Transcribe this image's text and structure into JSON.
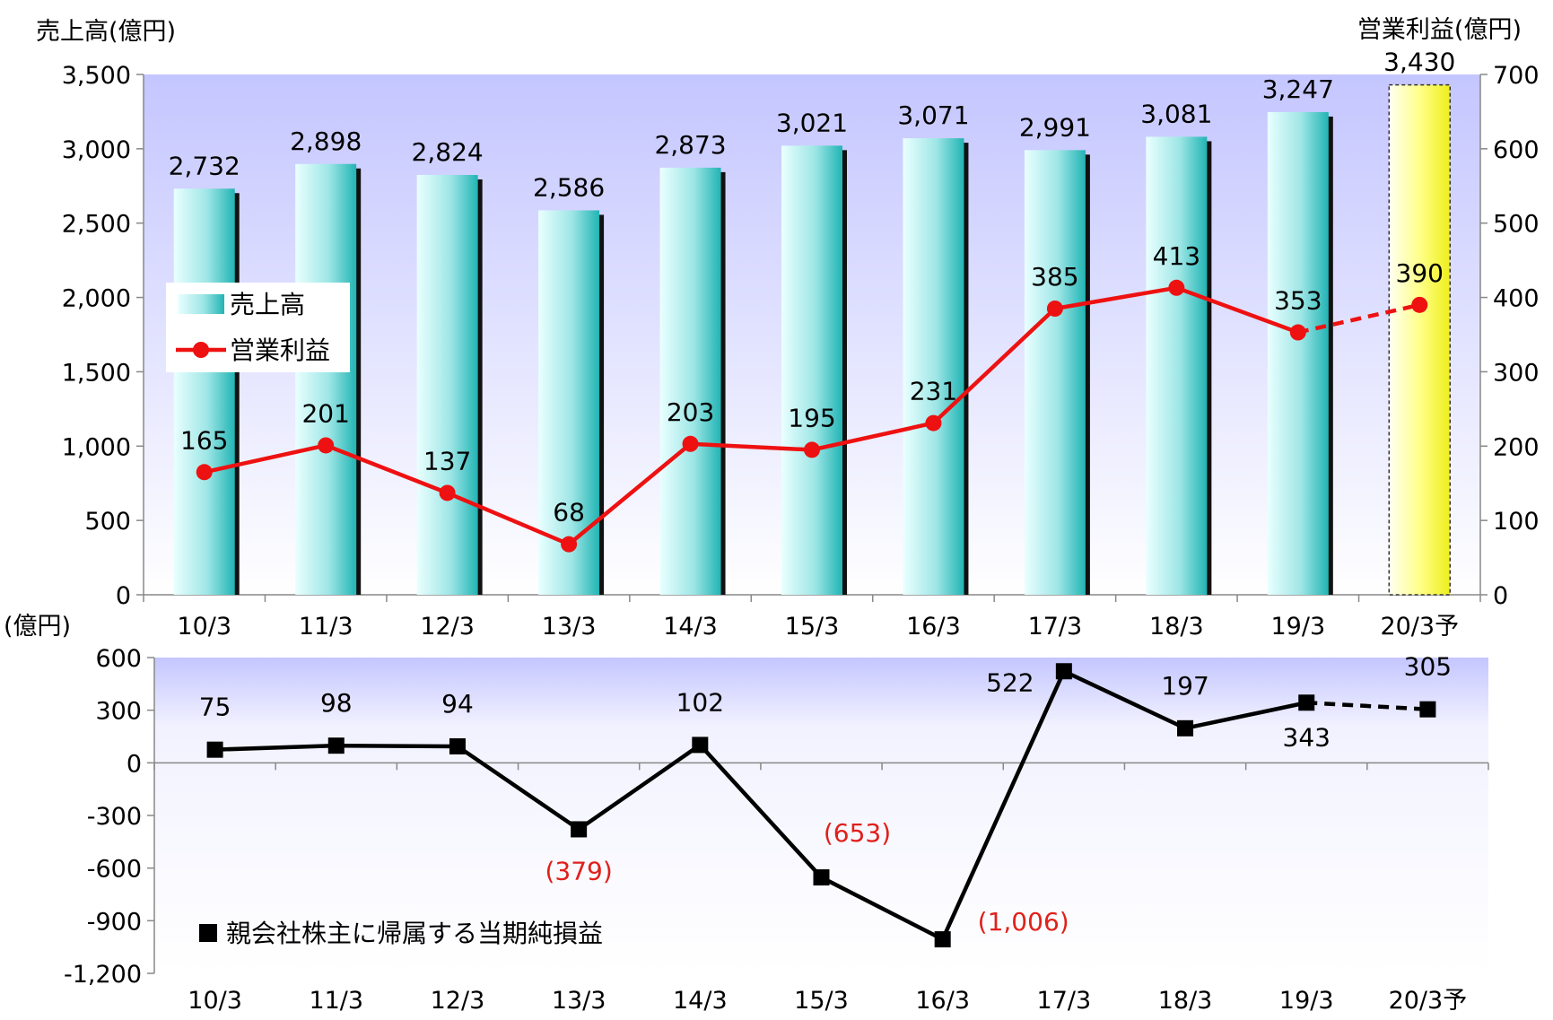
{
  "chart_data": [
    {
      "type": "bar+line",
      "title": "",
      "categories": [
        "10/3",
        "11/3",
        "12/3",
        "13/3",
        "14/3",
        "15/3",
        "16/3",
        "17/3",
        "18/3",
        "19/3",
        "20/3予"
      ],
      "ylabel_left": "売上高(億円)",
      "ylabel_right": "営業利益(億円)",
      "ylim_left": [
        0,
        3500
      ],
      "ylim_right": [
        0,
        700
      ],
      "yticks_left": [
        "0",
        "500",
        "1,000",
        "1,500",
        "2,000",
        "2,500",
        "3,000",
        "3,500"
      ],
      "yticks_right": [
        "0",
        "100",
        "200",
        "300",
        "400",
        "500",
        "600",
        "700"
      ],
      "series": [
        {
          "name": "売上高",
          "type": "bar",
          "axis": "left",
          "values": [
            2732,
            2898,
            2824,
            2586,
            2873,
            3021,
            3071,
            2991,
            3081,
            3247,
            3430
          ],
          "labels": [
            "2,732",
            "2,898",
            "2,824",
            "2,586",
            "2,873",
            "3,021",
            "3,071",
            "2,991",
            "3,081",
            "3,247",
            "3,430"
          ],
          "forecast_index": 10,
          "color": "#3cc3c3",
          "forecast_color": "#f5f030"
        },
        {
          "name": "営業利益",
          "type": "line",
          "axis": "right",
          "values": [
            165,
            201,
            137,
            68,
            203,
            195,
            231,
            385,
            413,
            353,
            390
          ],
          "labels": [
            "165",
            "201",
            "137",
            "68",
            "203",
            "195",
            "231",
            "385",
            "413",
            "353",
            "390"
          ],
          "forecast_index": 10,
          "color": "#ee1111"
        }
      ],
      "legend": "left-middle",
      "grid": false
    },
    {
      "type": "line",
      "title": "",
      "ylabel": "(億円)",
      "categories": [
        "10/3",
        "11/3",
        "12/3",
        "13/3",
        "14/3",
        "15/3",
        "16/3",
        "17/3",
        "18/3",
        "19/3",
        "20/3予"
      ],
      "ylim": [
        -1200,
        600
      ],
      "yticks": [
        "-1,200",
        "-900",
        "-600",
        "-300",
        "0",
        "300",
        "600"
      ],
      "series": [
        {
          "name": "親会社株主に帰属する当期純損益",
          "values": [
            75,
            98,
            94,
            -379,
            102,
            -653,
            -1006,
            522,
            197,
            343,
            305
          ],
          "labels": [
            "75",
            "98",
            "94",
            "(379)",
            "102",
            "(653)",
            "(1,006)",
            "522",
            "197",
            "343",
            "305"
          ],
          "forecast_index": 10,
          "color": "#000000",
          "negative_label_color": "#e0201a"
        }
      ],
      "legend": "bottom-left",
      "grid": false
    }
  ]
}
